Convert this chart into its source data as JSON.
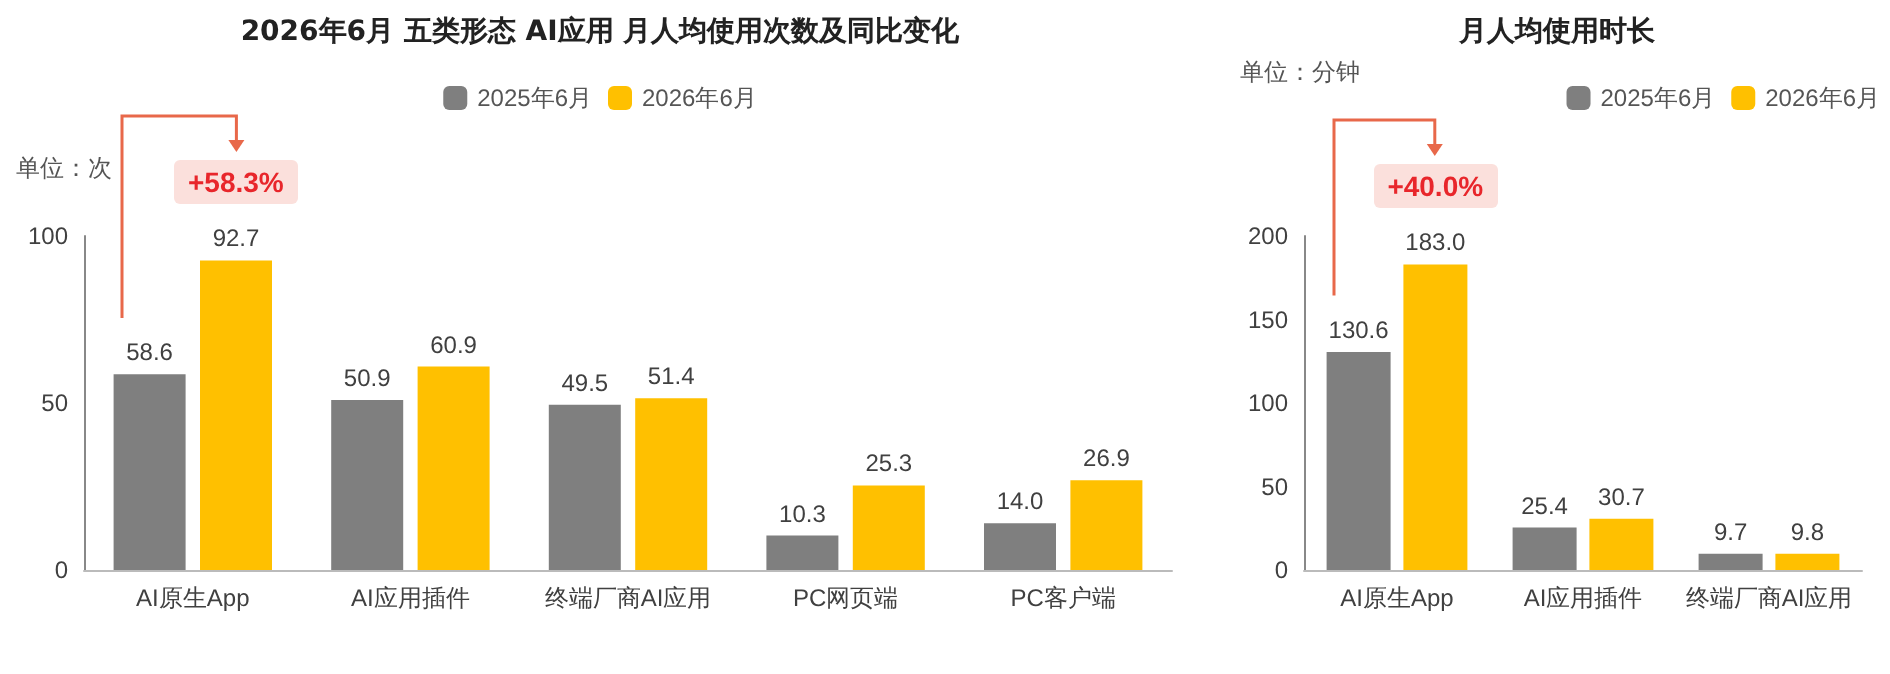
{
  "chart_data": [
    {
      "type": "bar",
      "title": "2026年6月 五类形态 AI应用 月人均使用次数及同比变化",
      "ylabel": "单位：次",
      "categories": [
        "AI原生App",
        "AI应用插件",
        "终端厂商AI应用",
        "PC网页端",
        "PC客户端"
      ],
      "series": [
        {
          "name": "2025年6月",
          "color": "#7f7f7f",
          "values": [
            58.6,
            50.9,
            49.5,
            10.3,
            14.0
          ],
          "value_labels": [
            "58.6",
            "50.9",
            "49.5",
            "10.3",
            "14.0"
          ]
        },
        {
          "name": "2026年6月",
          "color": "#ffc000",
          "values": [
            92.7,
            60.9,
            51.4,
            25.3,
            26.9
          ],
          "value_labels": [
            "92.7",
            "60.9",
            "51.4",
            "25.3",
            "26.9"
          ]
        }
      ],
      "ylim": [
        0,
        100
      ],
      "yticks": [
        0,
        50,
        100
      ],
      "grid": false,
      "legend": "top",
      "annotations": [
        {
          "text": "+58.3%",
          "x": "AI原生App",
          "y": 92.7
        }
      ]
    },
    {
      "type": "bar",
      "title": "月人均使用时长",
      "ylabel": "单位：分钟",
      "categories": [
        "AI原生App",
        "AI应用插件",
        "终端厂商AI应用"
      ],
      "series": [
        {
          "name": "2025年6月",
          "color": "#7f7f7f",
          "values": [
            130.6,
            25.4,
            9.7
          ],
          "value_labels": [
            "130.6",
            "25.4",
            "9.7"
          ]
        },
        {
          "name": "2026年6月",
          "color": "#ffc000",
          "values": [
            183.0,
            30.7,
            9.8
          ],
          "value_labels": [
            "183.0",
            "30.7",
            "9.8"
          ]
        }
      ],
      "ylim": [
        0,
        200
      ],
      "yticks": [
        0,
        50,
        100,
        150,
        200
      ],
      "grid": false,
      "legend": "top right",
      "annotations": [
        {
          "text": "+40.0%",
          "x": "AI原生App",
          "y": 183.0
        }
      ]
    }
  ]
}
